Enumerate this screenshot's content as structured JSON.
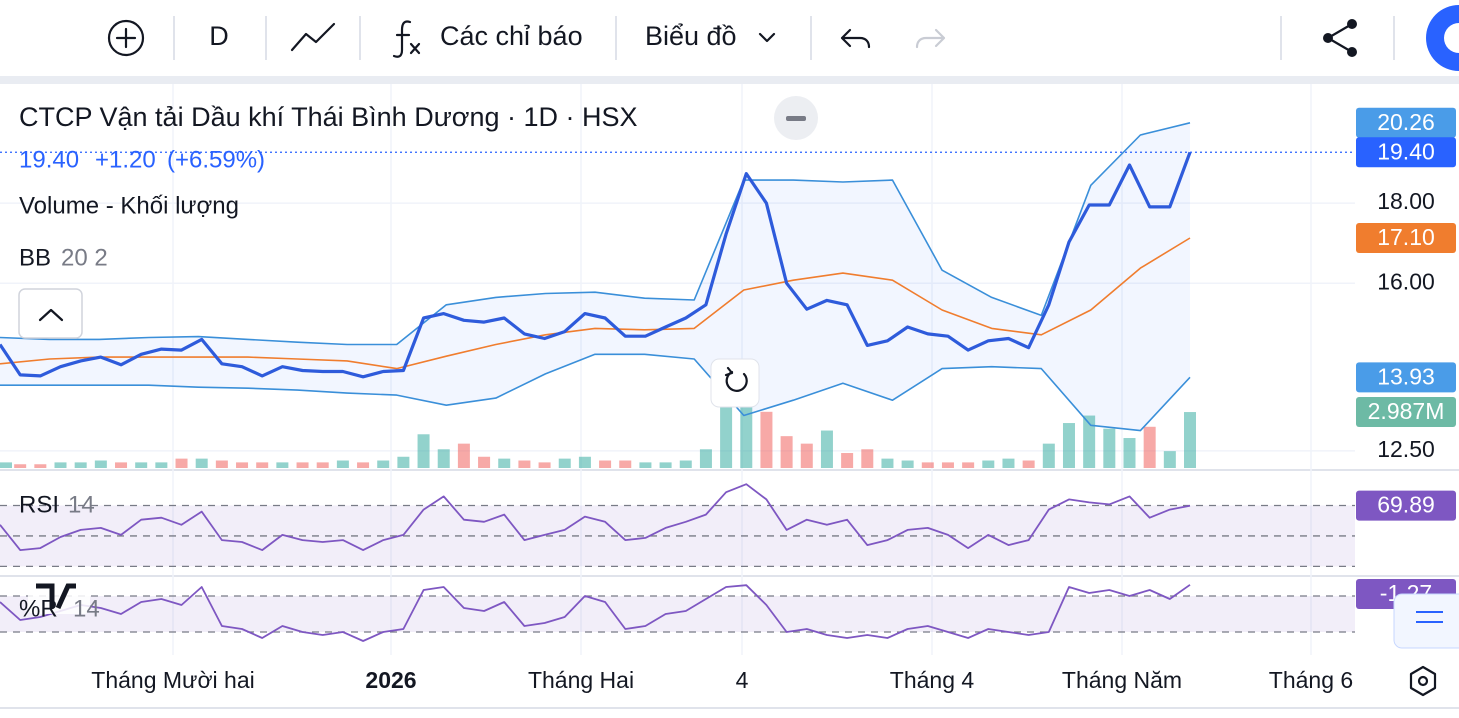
{
  "toolbar": {
    "interval": "D",
    "indicators": "Các chỉ báo",
    "chart_style": "Biểu đồ"
  },
  "chart_data": {
    "type": "line",
    "title": "CTCP Vận tải Dầu khí Thái Bình Dương · 1D · HSX",
    "quote": {
      "last": "19.40",
      "change": "+1.20",
      "change_pct": "(+6.59%)"
    },
    "log_scale": true,
    "grid": true,
    "ylim": [
      12.19,
      21.45
    ],
    "yticks": [
      {
        "value": 18,
        "label": "18.00"
      },
      {
        "value": 16,
        "label": "16.00"
      },
      {
        "value": 12.5,
        "label": "12.50"
      }
    ],
    "x_labels": [
      "Tháng Mười hai",
      "2026",
      "Tháng Hai",
      "4",
      "Tháng 4",
      "Tháng Năm",
      "Tháng 6"
    ],
    "price": {
      "color": "#2e5bdb",
      "values": [
        14.62,
        13.98,
        13.96,
        14.15,
        14.27,
        14.35,
        14.19,
        14.41,
        14.52,
        14.5,
        14.73,
        14.21,
        14.15,
        13.96,
        14.15,
        14.07,
        14.05,
        14.05,
        13.94,
        14.05,
        14.07,
        15.2,
        15.3,
        15.15,
        15.11,
        15.2,
        14.85,
        14.75,
        14.9,
        15.3,
        15.2,
        14.8,
        14.8,
        15.0,
        15.2,
        15.5,
        17.2,
        18.8,
        18.0,
        16.0,
        15.4,
        15.6,
        15.5,
        14.6,
        14.7,
        15.0,
        14.85,
        14.8,
        14.5,
        14.7,
        14.75,
        14.55,
        15.5,
        17.0,
        17.95,
        17.95,
        19.04,
        17.9,
        17.9,
        19.4
      ]
    },
    "bb": {
      "label": "BB",
      "params": "20 2",
      "fill": "rgba(41,98,255,0.06)",
      "upper": {
        "color": "#3a8fd9",
        "values": [
          14.77,
          14.73,
          14.73,
          14.77,
          14.79,
          14.73,
          14.67,
          14.62,
          14.62,
          15.5,
          15.67,
          15.76,
          15.79,
          15.65,
          15.61,
          18.62,
          18.62,
          18.57,
          18.62,
          16.31,
          15.67,
          15.26,
          18.48,
          19.9,
          20.26
        ]
      },
      "middle": {
        "color": "#f07d2e",
        "values": [
          14.21,
          14.31,
          14.35,
          14.35,
          14.35,
          14.35,
          14.31,
          14.27,
          14.11,
          14.37,
          14.62,
          14.83,
          14.97,
          14.94,
          14.97,
          15.84,
          16.07,
          16.24,
          16.07,
          15.38,
          14.97,
          14.83,
          15.38,
          16.36,
          17.1
        ]
      },
      "lower": {
        "color": "#3a8fd9",
        "values": [
          13.77,
          13.77,
          13.77,
          13.77,
          13.73,
          13.71,
          13.67,
          13.61,
          13.57,
          13.37,
          13.51,
          14.0,
          14.41,
          14.41,
          14.31,
          13.17,
          13.47,
          13.81,
          13.47,
          14.11,
          14.15,
          14.11,
          12.98,
          12.88,
          13.93
        ]
      }
    },
    "price_badges": [
      {
        "value": 20.26,
        "label": "20.26",
        "color": "#4a9ce8"
      },
      {
        "value": 19.4,
        "label": "19.40",
        "color": "#2962ff"
      },
      {
        "value": 17.1,
        "label": "17.10",
        "color": "#f07d2e"
      },
      {
        "value": 13.93,
        "label": "13.93",
        "color": "#4a9ce8"
      }
    ],
    "volume": {
      "label": "Volume - Khối lượng",
      "ylim": [
        0,
        20.5
      ],
      "up_color": "rgba(38,166,154,0.5)",
      "down_color": "rgba(239,83,80,0.5)",
      "values": [
        0.3,
        0.2,
        0.2,
        0.3,
        0.3,
        0.4,
        0.3,
        0.3,
        0.3,
        0.5,
        0.5,
        0.4,
        0.3,
        0.3,
        0.3,
        0.3,
        0.3,
        0.4,
        0.3,
        0.4,
        0.6,
        1.8,
        1.0,
        1.3,
        0.6,
        0.5,
        0.4,
        0.3,
        0.5,
        0.6,
        0.4,
        0.4,
        0.3,
        0.3,
        0.4,
        1.0,
        3.3,
        3.5,
        3.0,
        1.7,
        1.3,
        2.0,
        0.8,
        1.0,
        0.5,
        0.4,
        0.3,
        0.3,
        0.3,
        0.4,
        0.5,
        0.4,
        1.3,
        2.4,
        2.8,
        2.1,
        1.6,
        2.2,
        0.9,
        2.987
      ],
      "badge": {
        "value": 2.987,
        "label": "2.987M",
        "color": "#6dbaa5"
      }
    },
    "rsi": {
      "label": "RSI",
      "params": "14",
      "ylim": [
        25,
        92
      ],
      "bands": [
        30,
        50,
        70
      ],
      "color": "#7e57c2",
      "values": [
        57.3,
        40.7,
        42,
        49.3,
        54,
        55.3,
        50.7,
        60.7,
        62,
        57.3,
        66,
        47.3,
        46,
        40.7,
        50.7,
        47.3,
        46,
        47.3,
        40.7,
        47.3,
        50.7,
        67.3,
        76,
        60.7,
        59.3,
        64,
        47.3,
        50.7,
        54,
        62.7,
        59.3,
        47.3,
        48.7,
        55.3,
        59.3,
        64,
        78.7,
        84,
        74,
        54,
        60.7,
        57.3,
        60.7,
        44,
        47.3,
        54,
        55.3,
        50.7,
        42,
        50.7,
        44,
        47.3,
        67.3,
        74,
        72,
        70.7,
        76,
        62,
        67.3,
        69.89
      ]
    },
    "williams_r": {
      "label": "%R",
      "params": "14",
      "ylim": [
        -100,
        0
      ],
      "bands": [
        -80,
        -20
      ],
      "color": "#7e57c2",
      "values": [
        -30,
        -60,
        -55,
        -45,
        -35,
        -40,
        -50,
        -30,
        -25,
        -35,
        -5,
        -70,
        -75,
        -90,
        -70,
        -80,
        -85,
        -80,
        -95,
        -80,
        -75,
        -10,
        -5,
        -40,
        -45,
        -30,
        -70,
        -65,
        -55,
        -20,
        -30,
        -75,
        -70,
        -50,
        -45,
        -25,
        -5,
        -2,
        -35,
        -80,
        -75,
        -85,
        -90,
        -85,
        -90,
        -75,
        -70,
        -80,
        -90,
        -75,
        -80,
        -85,
        -80,
        -5,
        -15,
        -10,
        -20,
        -10,
        -25,
        -1.27
      ]
    }
  }
}
